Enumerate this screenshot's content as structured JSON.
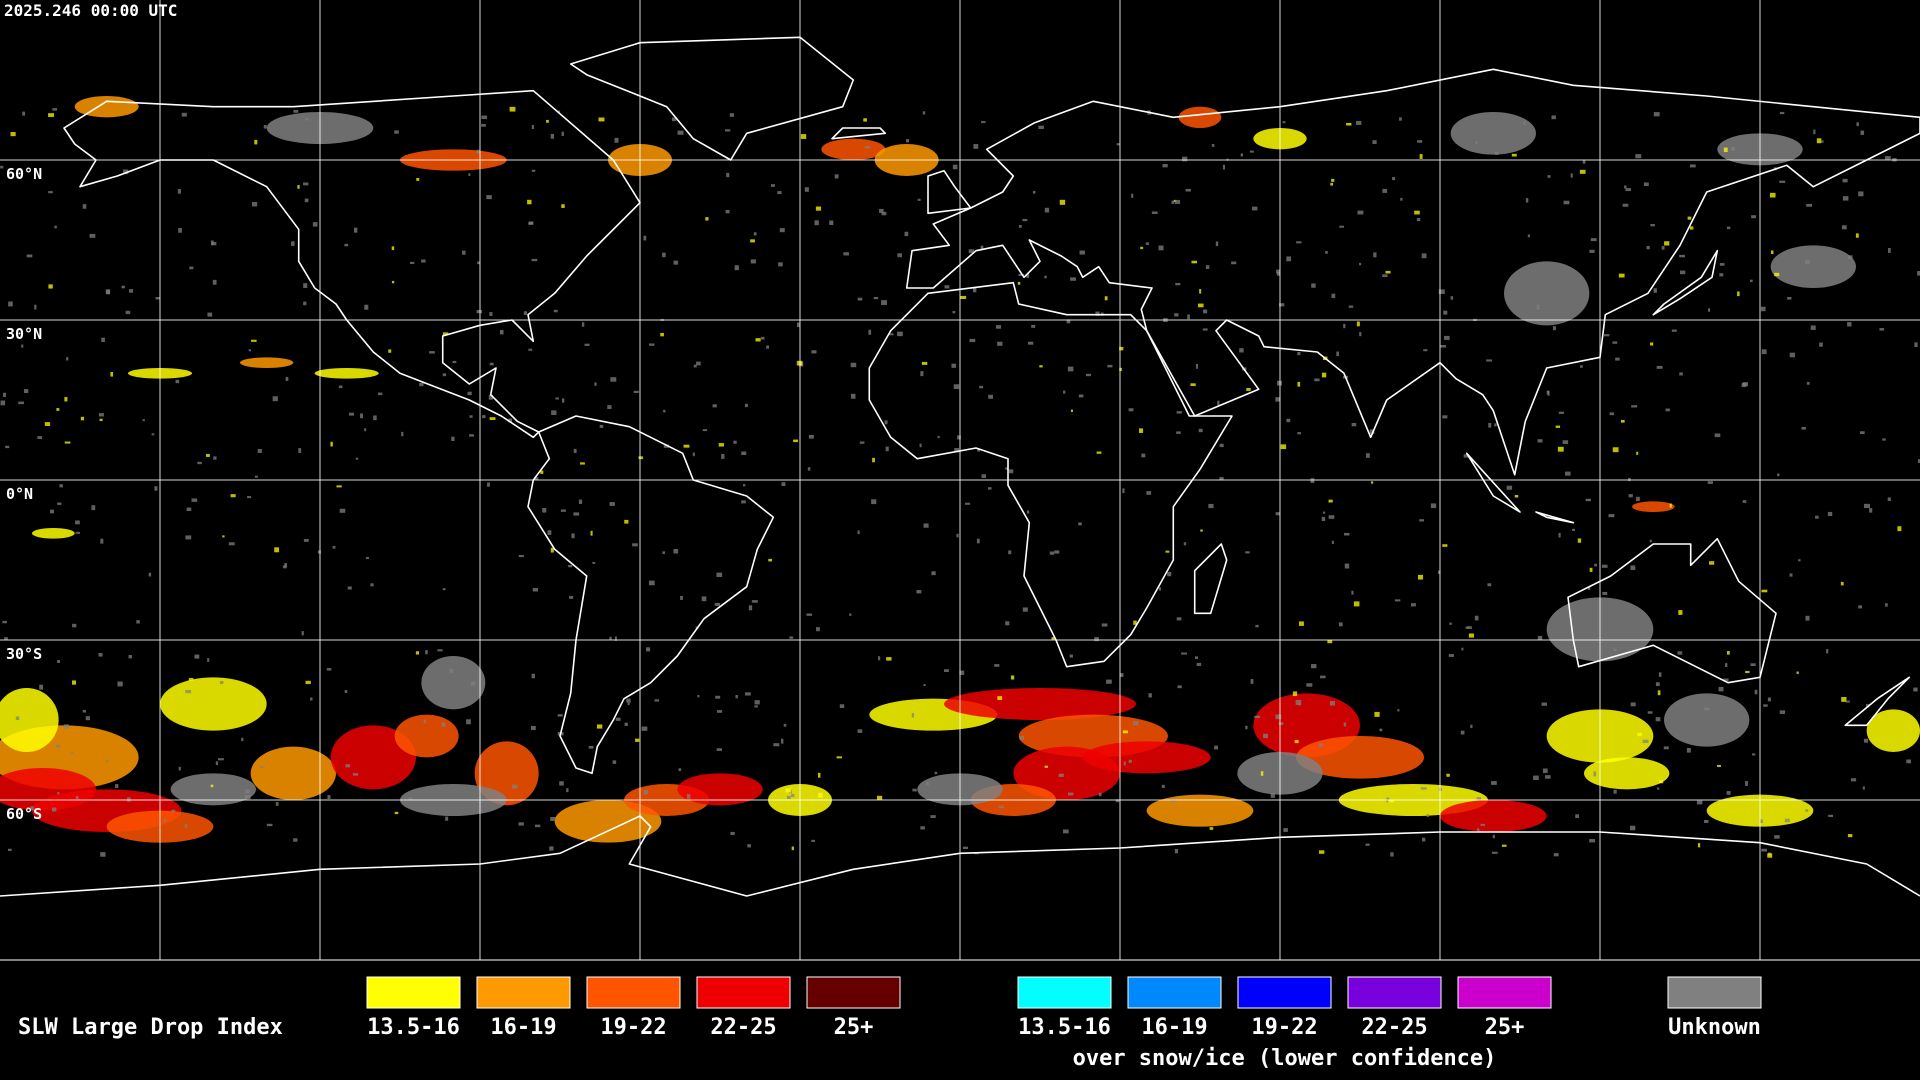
{
  "header": {
    "timestamp": "2025.246 00:00 UTC"
  },
  "map": {
    "latitude_labels": [
      "60°N",
      "30°N",
      "0°N",
      "30°S",
      "60°S"
    ]
  },
  "legend": {
    "title": "SLW Large Drop Index",
    "groups": [
      {
        "items": [
          {
            "label": "13.5-16",
            "color": "#ffff00"
          },
          {
            "label": "16-19",
            "color": "#ff9900"
          },
          {
            "label": "19-22",
            "color": "#ff5500"
          },
          {
            "label": "22-25",
            "color": "#ee0000"
          },
          {
            "label": "25+",
            "color": "#660000"
          }
        ]
      },
      {
        "items": [
          {
            "label": "13.5-16",
            "color": "#00ffff"
          },
          {
            "label": "16-19",
            "color": "#0088ff"
          },
          {
            "label": "19-22",
            "color": "#0000ff"
          },
          {
            "label": "22-25",
            "color": "#7700dd"
          },
          {
            "label": "25+",
            "color": "#cc00cc"
          }
        ],
        "caption": "over snow/ice (lower confidence)"
      },
      {
        "items": [
          {
            "label": "Unknown",
            "color": "#808080"
          }
        ]
      }
    ]
  }
}
